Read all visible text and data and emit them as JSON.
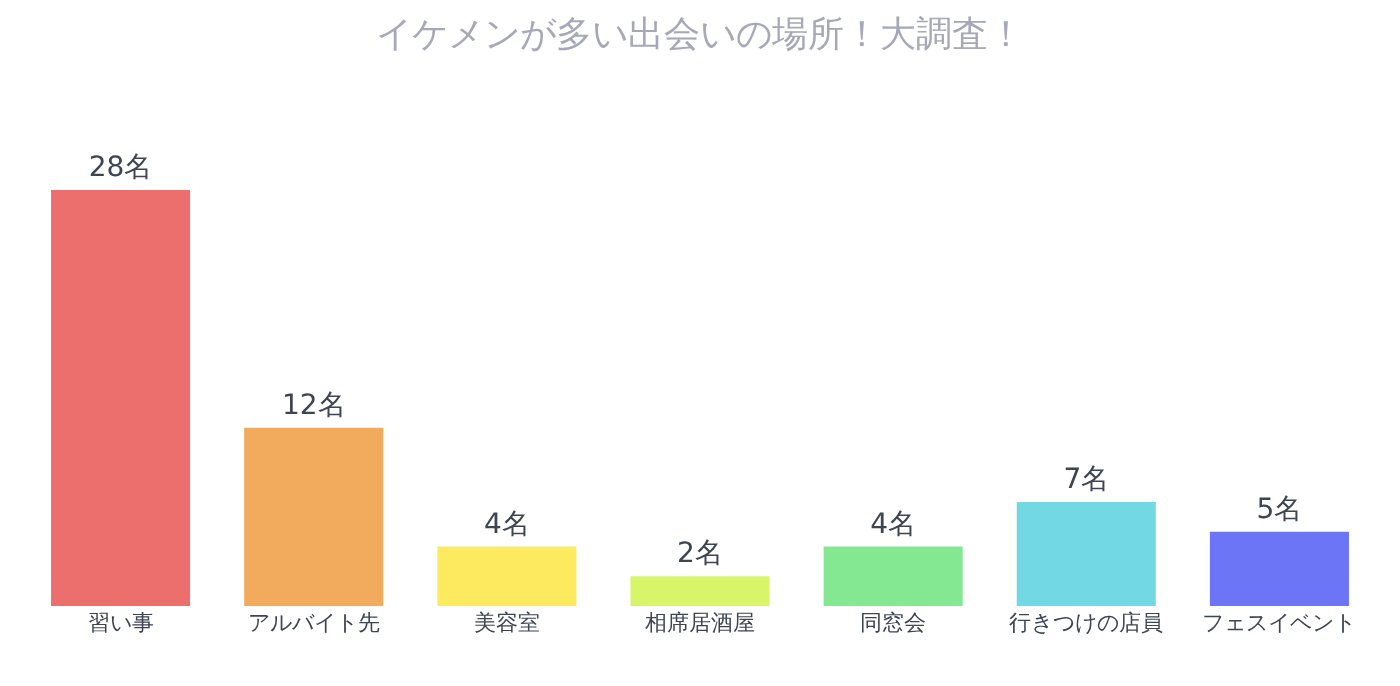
{
  "chart_data": {
    "type": "bar",
    "title": "イケメンが多い出会いの場所！大調査！",
    "categories": [
      "習い事",
      "アルバイト先",
      "美容室",
      "相席居酒屋",
      "同窓会",
      "行きつけの店員",
      "フェスイベント"
    ],
    "values": [
      28,
      12,
      4,
      2,
      4,
      7,
      5
    ],
    "value_labels": [
      "28名",
      "12名",
      "4名",
      "2名",
      "4名",
      "7名",
      "5名"
    ],
    "colors": [
      "#ec6f6d",
      "#f2aa5c",
      "#fdea5f",
      "#d8f56a",
      "#84e893",
      "#72d9e4",
      "#6b75f5"
    ]
  }
}
